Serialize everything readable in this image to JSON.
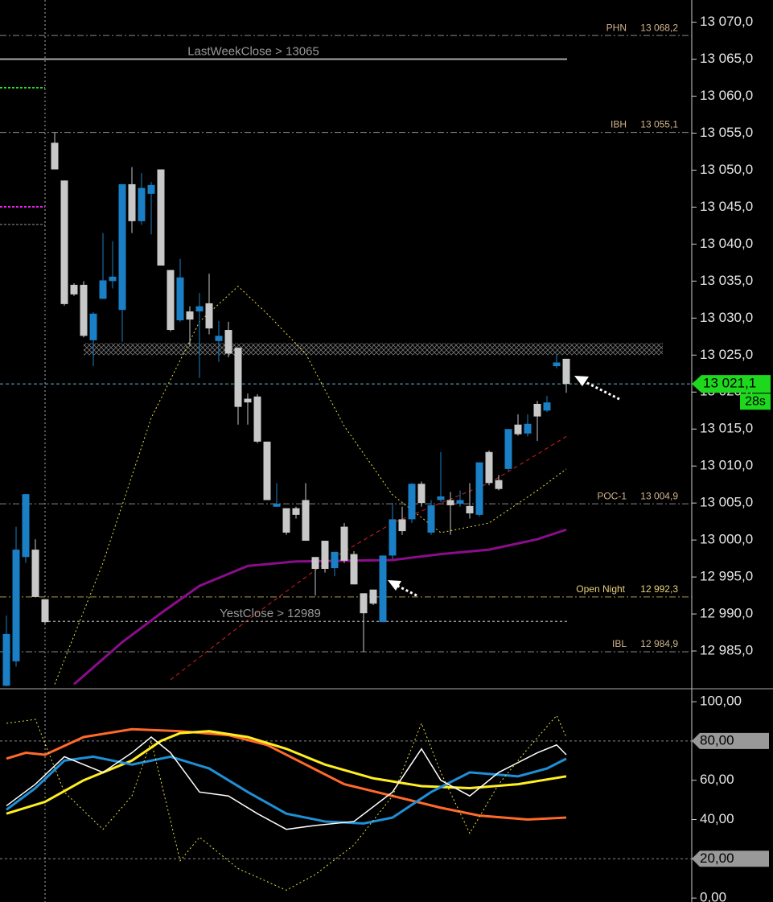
{
  "chart_data": [
    {
      "type": "candlestick",
      "up_color": "#1a7fc4",
      "down_color": "#c8c8c8",
      "ylim": [
        12980,
        13073
      ],
      "yticks": [
        {
          "value": 12985,
          "label": "12 985,0"
        },
        {
          "value": 12990,
          "label": "12 990,0"
        },
        {
          "value": 12995,
          "label": "12 995,0"
        },
        {
          "value": 13000,
          "label": "13 000,0"
        },
        {
          "value": 13005,
          "label": "13 005,0"
        },
        {
          "value": 13010,
          "label": "13 010,0"
        },
        {
          "value": 13015,
          "label": "13 015,0"
        },
        {
          "value": 13020,
          "label": "13 020,0"
        },
        {
          "value": 13025,
          "label": "13 025,0"
        },
        {
          "value": 13030,
          "label": "13 030,0"
        },
        {
          "value": 13035,
          "label": "13 035,0"
        },
        {
          "value": 13040,
          "label": "13 040,0"
        },
        {
          "value": 13045,
          "label": "13 045,0"
        },
        {
          "value": 13050,
          "label": "13 050,0"
        },
        {
          "value": 13055,
          "label": "13 055,0"
        },
        {
          "value": 13060,
          "label": "13 060,0"
        },
        {
          "value": 13065,
          "label": "13 065,0"
        },
        {
          "value": 13070,
          "label": "13 070,0"
        }
      ],
      "open": [
        12980.3,
        12983.6,
        12997.7,
        12998.7,
        12992.0,
        13053.7,
        13048.6,
        13034.5,
        13034.5,
        13027.0,
        13032.6,
        13035.0,
        13031.1,
        13048.1,
        13043.1,
        13046.8,
        13050.1,
        13036.5,
        13029.7,
        13030.9,
        13030.9,
        13032.0,
        13026.9,
        13028.4,
        13026.0,
        13019.1,
        13019.4,
        13013.3,
        13004.5,
        13004.3,
        13004.3,
        13005.4,
        12997.7,
        12999.9,
        12996.2,
        13001.8,
        12998.1,
        12992.8,
        12993.3,
        12988.9,
        12997.9,
        13002.8,
        13002.8,
        13007.6,
        13001.0,
        13005.4,
        13005.4,
        13004.9,
        13004.6,
        13003.4,
        13011.9,
        13008.1,
        13009.6,
        13015.6,
        13014.4,
        13018.4,
        13017.5,
        13023.5,
        13024.5
      ],
      "high": [
        12989.8,
        13001.8,
        13006.2,
        13000.1,
        12992.0,
        13055.1,
        13048.6,
        13034.7,
        13035.0,
        13030.8,
        13041.5,
        13040.4,
        13048.1,
        13050.4,
        13049.6,
        13048.4,
        13050.1,
        13036.5,
        13038.0,
        13031.6,
        13033.4,
        13036.0,
        13029.6,
        13029.5,
        13026.0,
        13019.8,
        13019.7,
        13013.3,
        13007.7,
        13004.3,
        13004.5,
        13007.7,
        12997.7,
        12999.9,
        12998.4,
        13002.3,
        12998.5,
        12992.8,
        12993.3,
        12997.9,
        13005.0,
        13004.5,
        13007.7,
        13007.9,
        13005.4,
        13011.9,
        13006.5,
        13006.7,
        13007.7,
        13010.5,
        13012.1,
        13008.8,
        13015.0,
        13017.0,
        13017.0,
        13018.8,
        13019.5,
        13025.2,
        13024.5
      ],
      "low": [
        12980.2,
        12982.9,
        12996.9,
        12992.3,
        12988.7,
        13050.1,
        13031.7,
        13033.0,
        13027.4,
        13023.5,
        13032.6,
        13034.0,
        13026.8,
        13041.5,
        13042.6,
        13041.3,
        13037.1,
        13028.2,
        13029.5,
        13026.2,
        13021.9,
        13027.8,
        13024.1,
        13024.7,
        13015.6,
        13015.6,
        13013.1,
        13005.4,
        13004.5,
        13000.7,
        13002.9,
        12999.9,
        12992.5,
        12995.6,
        12995.1,
        12996.9,
        12994.0,
        12984.9,
        12991.2,
        12988.9,
        12997.4,
        13000.7,
        13002.3,
        13004.5,
        13000.7,
        13005.1,
        13000.7,
        13004.5,
        13002.9,
        13003.2,
        13007.4,
        13006.7,
        13009.4,
        13014.1,
        13014.0,
        13013.4,
        13017.3,
        13023.2,
        13019.9
      ],
      "close": [
        12987.3,
        12998.7,
        13006.2,
        12992.3,
        12988.9,
        13050.1,
        13031.9,
        13033.2,
        13027.6,
        13030.6,
        13035.1,
        13035.6,
        13048.1,
        13043.1,
        13047.6,
        13048.0,
        13037.1,
        13028.4,
        13035.5,
        13029.8,
        13031.6,
        13028.6,
        13027.6,
        13025.2,
        13018.0,
        13018.6,
        13013.3,
        13005.4,
        13004.9,
        13001.0,
        13003.4,
        12999.9,
        12996.1,
        12996.1,
        12998.4,
        12997.2,
        12994.0,
        12990.1,
        12991.4,
        12997.9,
        13002.8,
        13001.2,
        13007.6,
        13005.0,
        13004.7,
        13005.9,
        13004.7,
        13005.4,
        13003.6,
        13010.5,
        13007.7,
        13006.9,
        13015.0,
        13014.3,
        13015.7,
        13016.7,
        13018.6,
        13024.0,
        13021.1
      ],
      "zone": [
        13025.0,
        13026.6
      ],
      "levels": [
        {
          "name": "PHN",
          "value": 13068.2,
          "value_label": "13 068,2",
          "color": "#d2b48c"
        },
        {
          "name": "IBH",
          "value": 13055.1,
          "value_label": "13 055,1",
          "color": "#d2b48c"
        },
        {
          "name": "POC-1",
          "value": 13004.9,
          "value_label": "13 004,9",
          "color": "#d2b48c"
        },
        {
          "name": "Open Night",
          "value": 12992.3,
          "value_label": "12 992,3",
          "color": "#e8d27a"
        },
        {
          "name": "IBL",
          "value": 12984.9,
          "value_label": "12 984,9",
          "color": "#d2b48c"
        }
      ],
      "closes": [
        {
          "label": "LastWeekClose > 13065",
          "value": 13065,
          "from": 0
        },
        {
          "label": "YestClose > 12989",
          "value": 12989,
          "from": 5
        }
      ],
      "last_price": {
        "value": 13021.1,
        "label": "13 021,1"
      },
      "timer": "28s",
      "series": [
        {
          "color": "#8b0d8b",
          "dash": "none",
          "width": 3,
          "x": [
            7,
            12,
            16,
            20,
            25,
            30,
            35,
            40,
            45,
            50,
            55,
            58
          ],
          "values": [
            12980.5,
            12986.2,
            12990.1,
            12993.8,
            12996.5,
            12997.1,
            12997.2,
            12997.3,
            12998.1,
            12998.7,
            13000.1,
            13001.4
          ]
        },
        {
          "color": "#d62020",
          "dash": "5 4",
          "width": 1,
          "x": [
            17,
            25,
            33,
            40,
            45,
            50,
            55,
            58
          ],
          "values": [
            12981.1,
            12989.2,
            12996.9,
            13002.3,
            13005.0,
            13007.7,
            13011.6,
            13014.0
          ]
        },
        {
          "color": "#e8e040",
          "dash": "2 3",
          "width": 1,
          "x": [
            5,
            10,
            15,
            20,
            24,
            27,
            31,
            35,
            40,
            45,
            50,
            55,
            58
          ],
          "values": [
            12980.5,
            12996.9,
            13016.5,
            13029.5,
            13034.3,
            13030.6,
            13025.2,
            13015.4,
            13006.1,
            13001.0,
            13002.3,
            13006.7,
            13009.6
          ]
        }
      ]
    },
    {
      "type": "line",
      "ylim": [
        -2,
        107
      ],
      "yticks": [
        {
          "value": 0,
          "label": "0,00"
        },
        {
          "value": 20,
          "label": "20,00",
          "boxed": true
        },
        {
          "value": 40,
          "label": "40,00"
        },
        {
          "value": 60,
          "label": "60,00"
        },
        {
          "value": 80,
          "label": "80,00",
          "boxed": true
        },
        {
          "value": 100,
          "label": "100,00"
        }
      ],
      "series": [
        {
          "color": "#ff6a2a",
          "dash": "none",
          "width": 3,
          "x": [
            0,
            2,
            4,
            8,
            13,
            18,
            23,
            27,
            31,
            35,
            40,
            45,
            49,
            54,
            58
          ],
          "values": [
            71,
            74,
            73,
            82,
            86,
            85,
            83,
            78,
            68,
            58,
            52,
            46,
            42,
            40,
            41
          ]
        },
        {
          "color": "#ffee22",
          "dash": "none",
          "width": 3,
          "x": [
            0,
            4,
            8,
            13,
            16,
            18,
            21,
            25,
            29,
            33,
            38,
            43,
            48,
            53,
            58
          ],
          "values": [
            43,
            49,
            60,
            70,
            80,
            84,
            85,
            82,
            76,
            68,
            61,
            57,
            56,
            58,
            62
          ]
        },
        {
          "color": "#1f8fd6",
          "dash": "none",
          "width": 3,
          "x": [
            0,
            3,
            6,
            9,
            13,
            17,
            21,
            25,
            29,
            33,
            37,
            40,
            44,
            48,
            53,
            56,
            58
          ],
          "values": [
            45,
            56,
            70,
            72,
            68,
            72,
            66,
            54,
            43,
            39,
            38,
            41,
            54,
            64,
            62,
            66,
            71
          ]
        },
        {
          "color": "#ffffff",
          "dash": "none",
          "width": 1.5,
          "x": [
            0,
            3,
            6,
            10,
            13,
            15,
            17,
            20,
            23,
            26,
            29,
            32,
            36,
            40,
            43,
            45,
            48,
            51,
            55,
            57,
            58
          ],
          "values": [
            47,
            58,
            72,
            64,
            74,
            82,
            74,
            54,
            52,
            43,
            35,
            37,
            39,
            54,
            76,
            60,
            52,
            64,
            74,
            78,
            73
          ]
        },
        {
          "color": "#e8e040",
          "dash": "2 3",
          "width": 1,
          "x": [
            0,
            3,
            6,
            10,
            13,
            15,
            18,
            20,
            24,
            29,
            32,
            36,
            40,
            43,
            45,
            48,
            51,
            54,
            57,
            58
          ],
          "values": [
            89,
            91,
            54,
            35,
            52,
            80,
            19,
            31,
            15,
            4,
            12,
            27,
            52,
            89,
            64,
            33,
            58,
            76,
            93,
            82
          ]
        }
      ]
    }
  ]
}
